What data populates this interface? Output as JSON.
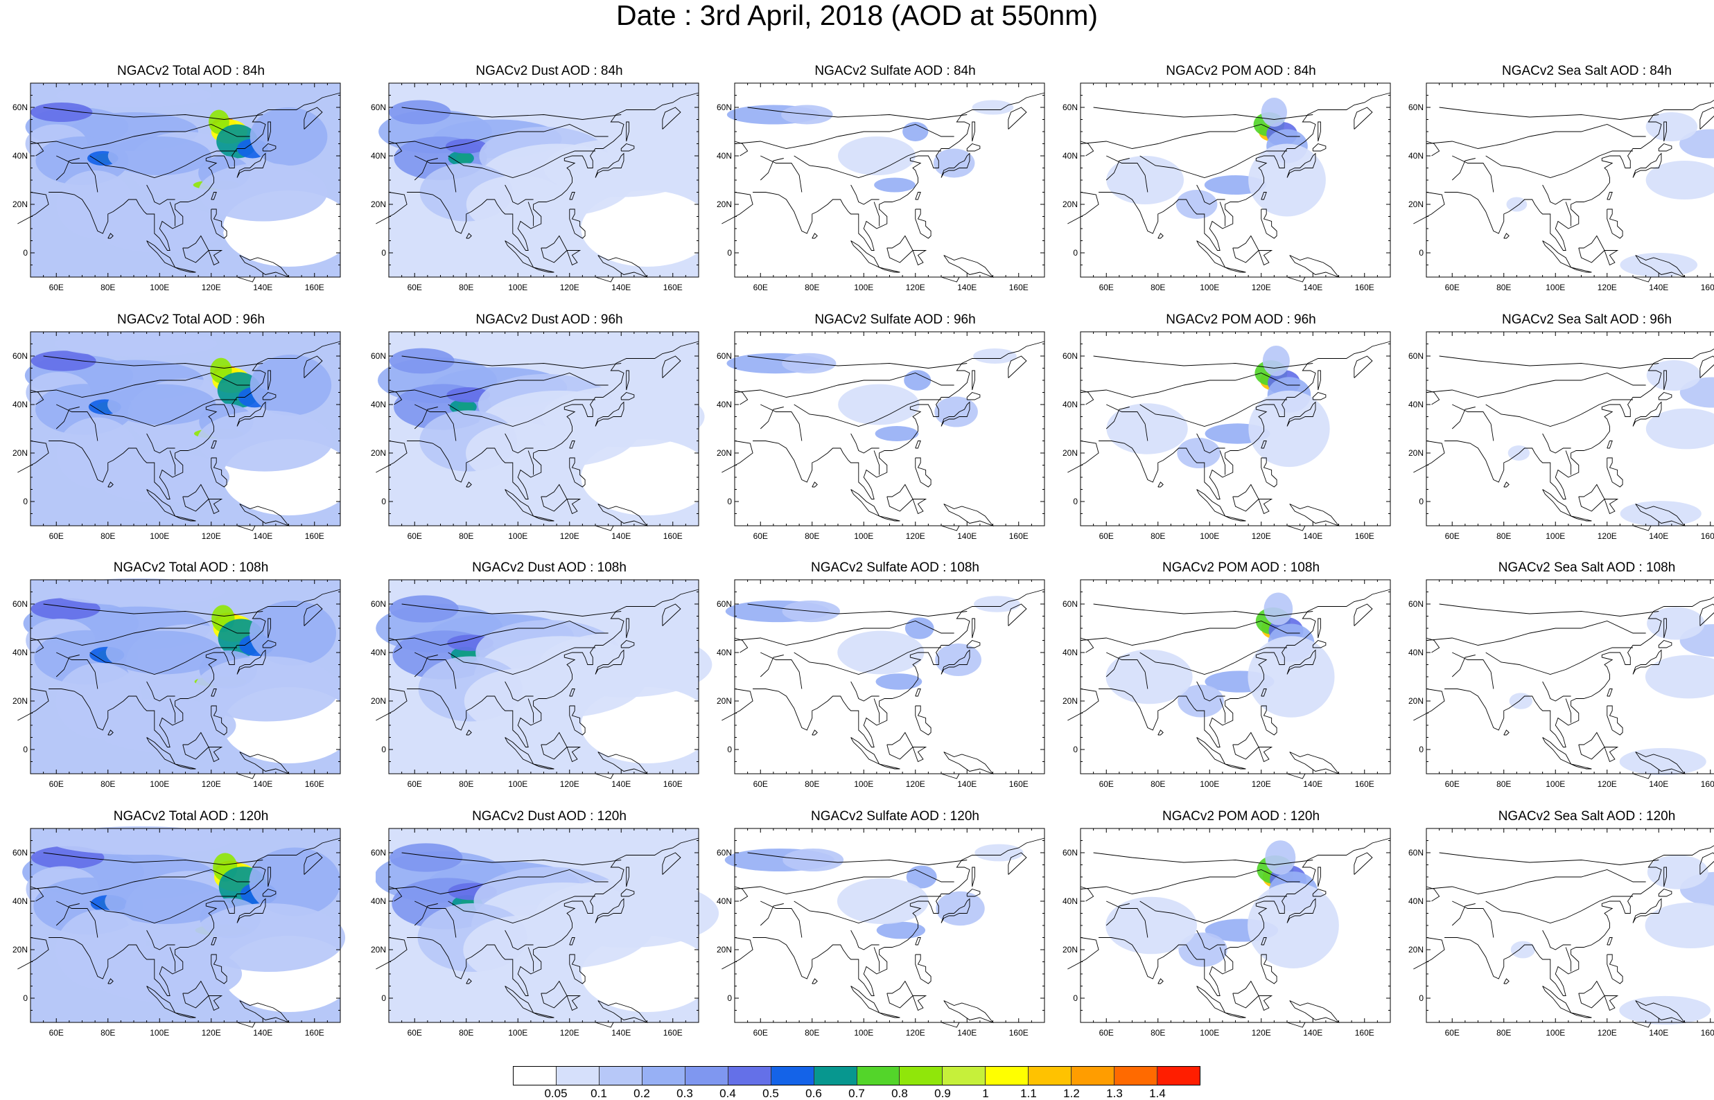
{
  "title": "Date : 3rd April, 2018 (AOD at 550nm)",
  "x_ticks": [
    "60E",
    "80E",
    "100E",
    "120E",
    "140E",
    "160E"
  ],
  "y_ticks": [
    "60N",
    "40N",
    "20N",
    "0"
  ],
  "panels": [
    {
      "title": "NGACv2 Total AOD : 84h"
    },
    {
      "title": "NGACv2 Dust AOD : 84h"
    },
    {
      "title": "NGACv2 Sulfate AOD : 84h"
    },
    {
      "title": "NGACv2 POM AOD : 84h"
    },
    {
      "title": "NGACv2 Sea Salt AOD : 84h"
    },
    {
      "title": "NGACv2 Total AOD : 96h"
    },
    {
      "title": "NGACv2 Dust AOD : 96h"
    },
    {
      "title": "NGACv2 Sulfate AOD : 96h"
    },
    {
      "title": "NGACv2 POM AOD : 96h"
    },
    {
      "title": "NGACv2 Sea Salt AOD : 96h"
    },
    {
      "title": "NGACv2 Total AOD : 108h"
    },
    {
      "title": "NGACv2 Dust AOD : 108h"
    },
    {
      "title": "NGACv2 Sulfate AOD : 108h"
    },
    {
      "title": "NGACv2 POM AOD : 108h"
    },
    {
      "title": "NGACv2 Sea Salt AOD : 108h"
    },
    {
      "title": "NGACv2 Total AOD : 120h"
    },
    {
      "title": "NGACv2 Dust AOD : 120h"
    },
    {
      "title": "NGACv2 Sulfate AOD : 120h"
    },
    {
      "title": "NGACv2 POM AOD : 120h"
    },
    {
      "title": "NGACv2 Sea Salt  AOD : 120h"
    }
  ],
  "colorbar": {
    "labels": [
      "0.05",
      "0.1",
      "0.2",
      "0.3",
      "0.4",
      "0.5",
      "0.6",
      "0.7",
      "0.8",
      "0.9",
      "1",
      "1.1",
      "1.2",
      "1.3",
      "1.4"
    ],
    "colors": [
      "#ffffff",
      "#d6e0fb",
      "#b7c8f8",
      "#97b0f5",
      "#7f97f0",
      "#6470e8",
      "#1463e8",
      "#07978f",
      "#53d52a",
      "#90e60a",
      "#c6f03a",
      "#ffff00",
      "#ffc200",
      "#ff9d00",
      "#ff6a00",
      "#ff1e00"
    ]
  }
}
